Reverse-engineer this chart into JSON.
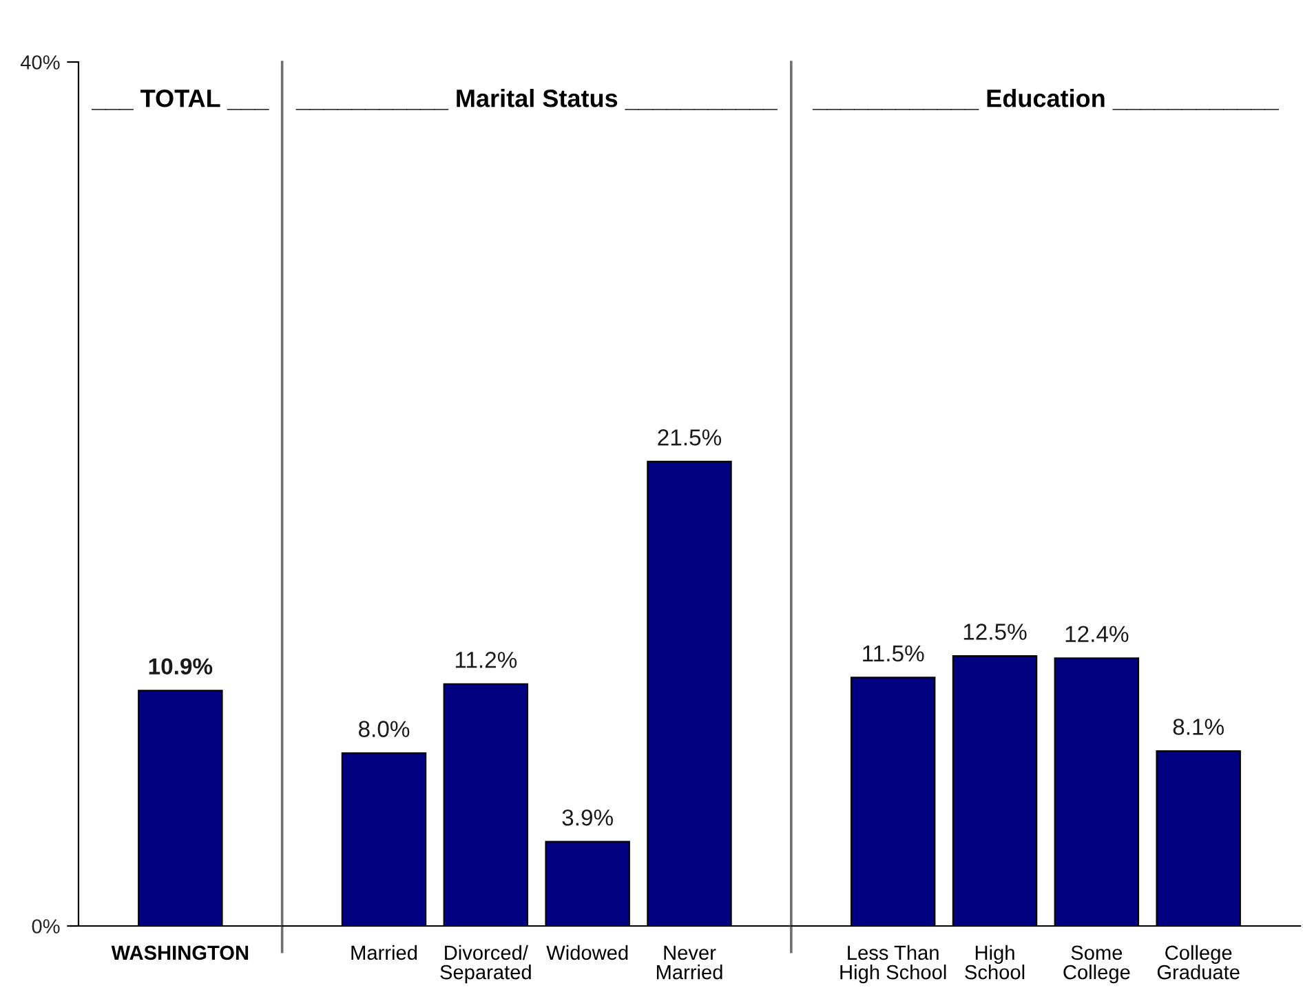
{
  "chart_data": [
    {
      "type": "bar",
      "title": "___ TOTAL ___",
      "categories": [
        "WASHINGTON"
      ],
      "values": [
        10.9
      ],
      "value_labels": [
        "10.9%"
      ],
      "color": "#000080",
      "ylim": [
        0,
        40
      ],
      "yticks": [
        {
          "value": 0,
          "label": "0%"
        },
        {
          "value": 40,
          "label": "40%"
        }
      ]
    },
    {
      "type": "bar",
      "title": "___________ Marital Status ___________",
      "categories": [
        "Married",
        "Divorced/\nSeparated",
        "Widowed",
        "Never\nMarried"
      ],
      "values": [
        8.0,
        11.2,
        3.9,
        21.5
      ],
      "value_labels": [
        "8.0%",
        "11.2%",
        "3.9%",
        "21.5%"
      ],
      "color": "#000080",
      "ylim": [
        0,
        40
      ],
      "tick_labels": "x"
    },
    {
      "type": "bar",
      "title": "____________ Education ____________",
      "categories": [
        "Less Than\nHigh School",
        "High\nSchool",
        "Some\nCollege",
        "College\nGraduate"
      ],
      "values": [
        11.5,
        12.5,
        12.4,
        8.1
      ],
      "value_labels": [
        "11.5%",
        "12.5%",
        "12.4%",
        "8.1%"
      ],
      "color": "#000080",
      "ylim": [
        0,
        40
      ],
      "tick_labels": "x"
    }
  ]
}
